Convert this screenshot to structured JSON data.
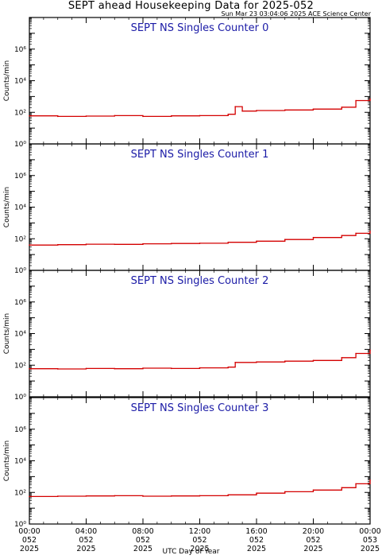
{
  "header": {
    "title": "SEPT ahead Housekeeping Data for 2025-052",
    "timestamp": "Sun Mar 23 03:04:06 2025 ACE Science Center"
  },
  "xaxis": {
    "label": "UTC Day of Year",
    "ticks": [
      {
        "hour": 0,
        "lines": [
          "00:00",
          "052",
          "2025"
        ]
      },
      {
        "hour": 4,
        "lines": [
          "04:00",
          "052",
          "2025"
        ]
      },
      {
        "hour": 8,
        "lines": [
          "08:00",
          "052",
          "2025"
        ]
      },
      {
        "hour": 12,
        "lines": [
          "12:00",
          "052",
          "2025"
        ]
      },
      {
        "hour": 16,
        "lines": [
          "16:00",
          "052",
          "2025"
        ]
      },
      {
        "hour": 20,
        "lines": [
          "20:00",
          "052",
          "2025"
        ]
      },
      {
        "hour": 24,
        "lines": [
          "00:00",
          "053",
          "2025"
        ]
      }
    ]
  },
  "colors": {
    "series": "#d40000",
    "panel_title": "#1a1aa6",
    "axis": "#000000"
  },
  "chart_data": [
    {
      "type": "line",
      "step": true,
      "title": "SEPT NS Singles Counter 0",
      "ylabel": "Counts/min",
      "yscale": "log",
      "ylim": [
        1,
        100000000
      ],
      "yticks": [
        1,
        100,
        10000,
        1000000
      ],
      "xlim": [
        0,
        24
      ],
      "x": [
        0,
        2,
        4,
        6,
        8,
        10,
        12,
        14,
        14.5,
        15,
        16,
        18,
        20,
        22,
        23,
        24
      ],
      "y": [
        60,
        55,
        58,
        62,
        55,
        60,
        62,
        75,
        230,
        120,
        130,
        140,
        160,
        210,
        550,
        700
      ]
    },
    {
      "type": "line",
      "step": true,
      "title": "SEPT NS Singles Counter 1",
      "ylabel": "Counts/min",
      "yscale": "log",
      "ylim": [
        1,
        100000000
      ],
      "yticks": [
        1,
        100,
        10000,
        1000000
      ],
      "xlim": [
        0,
        24
      ],
      "x": [
        0,
        2,
        4,
        6,
        8,
        10,
        12,
        14,
        16,
        18,
        20,
        22,
        23,
        24
      ],
      "y": [
        40,
        42,
        45,
        44,
        48,
        50,
        52,
        60,
        70,
        90,
        120,
        160,
        220,
        300
      ]
    },
    {
      "type": "line",
      "step": true,
      "title": "SEPT NS Singles Counter 2",
      "ylabel": "Counts/min",
      "yscale": "log",
      "ylim": [
        1,
        100000000
      ],
      "yticks": [
        1,
        100,
        10000,
        1000000
      ],
      "xlim": [
        0,
        24
      ],
      "x": [
        0,
        2,
        4,
        6,
        8,
        10,
        12,
        14,
        14.5,
        16,
        18,
        20,
        22,
        23,
        24
      ],
      "y": [
        60,
        58,
        62,
        60,
        65,
        62,
        68,
        75,
        150,
        160,
        180,
        200,
        300,
        550,
        900
      ]
    },
    {
      "type": "line",
      "step": true,
      "title": "SEPT NS Singles Counter 3",
      "ylabel": "Counts/min",
      "yscale": "log",
      "ylim": [
        1,
        100000000
      ],
      "yticks": [
        1,
        100,
        10000,
        1000000
      ],
      "xlim": [
        0,
        24
      ],
      "x": [
        0,
        2,
        4,
        6,
        8,
        10,
        12,
        14,
        16,
        18,
        20,
        22,
        23,
        24
      ],
      "y": [
        55,
        58,
        60,
        62,
        58,
        60,
        62,
        70,
        90,
        110,
        140,
        200,
        350,
        600
      ]
    }
  ]
}
